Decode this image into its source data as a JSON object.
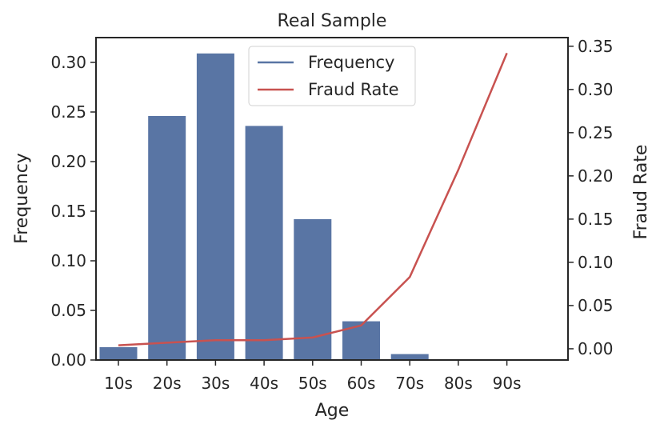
{
  "chart_data": {
    "type": "bar+line",
    "title": "Real Sample",
    "xlabel": "Age",
    "ylabel_left": "Frequency",
    "ylabel_right": "Fraud Rate",
    "categories": [
      "10s",
      "20s",
      "30s",
      "40s",
      "50s",
      "60s",
      "70s",
      "80s",
      "90s"
    ],
    "series": [
      {
        "name": "Frequency",
        "type": "bar",
        "axis": "left",
        "color": "#5975a4",
        "values": [
          0.013,
          0.246,
          0.309,
          0.236,
          0.142,
          0.039,
          0.006,
          0.0,
          0.0
        ]
      },
      {
        "name": "Fraud Rate",
        "type": "line",
        "axis": "right",
        "color": "#c85250",
        "values": [
          0.004,
          0.007,
          0.01,
          0.01,
          0.013,
          0.027,
          0.083,
          0.207,
          0.342
        ]
      }
    ],
    "ylim_left": [
      0,
      0.325
    ],
    "yticks_left": [
      "0.00",
      "0.05",
      "0.10",
      "0.15",
      "0.20",
      "0.25",
      "0.30"
    ],
    "ylim_right": [
      -0.013,
      0.36
    ],
    "yticks_right": [
      "0.00",
      "0.05",
      "0.10",
      "0.15",
      "0.20",
      "0.25",
      "0.30",
      "0.35"
    ],
    "grid": false,
    "legend_position": "top-center"
  }
}
